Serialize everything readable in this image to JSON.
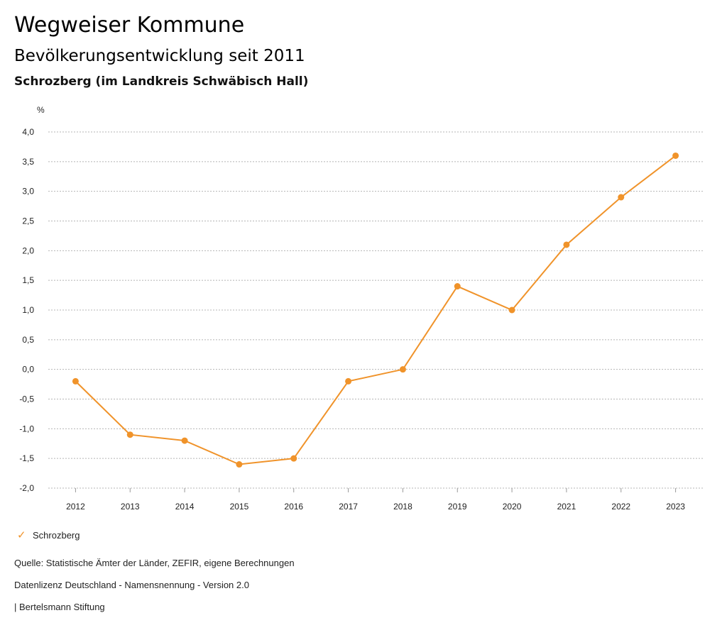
{
  "header": {
    "title": "Wegweiser Kommune",
    "subtitle": "Bevölkerungsentwicklung seit 2011",
    "region": "Schrozberg (im Landkreis Schwäbisch Hall)"
  },
  "chart_data": {
    "type": "line",
    "unit_label": "%",
    "x": [
      "2012",
      "2013",
      "2014",
      "2015",
      "2016",
      "2017",
      "2018",
      "2019",
      "2020",
      "2021",
      "2022",
      "2023"
    ],
    "series": [
      {
        "name": "Schrozberg",
        "color": "#f0932a",
        "values": [
          -0.2,
          -1.1,
          -1.2,
          -1.6,
          -1.5,
          -0.2,
          0.0,
          1.4,
          1.0,
          2.1,
          2.9,
          3.6
        ]
      }
    ],
    "yticks": [
      "4,0",
      "3,5",
      "3,0",
      "2,5",
      "2,0",
      "1,5",
      "1,0",
      "0,5",
      "0,0",
      "-0,5",
      "-1,0",
      "-1,5",
      "-2,0"
    ],
    "ylim": [
      -2.0,
      4.0
    ],
    "grid": true,
    "legend_position": "bottom-left"
  },
  "legend": {
    "label": "Schrozberg",
    "check_icon": "✓"
  },
  "footer": {
    "source": "Quelle: Statistische Ämter der Länder, ZEFIR, eigene Berechnungen",
    "license": "Datenlizenz Deutschland - Namensnennung - Version 2.0",
    "credit": "| Bertelsmann Stiftung"
  }
}
